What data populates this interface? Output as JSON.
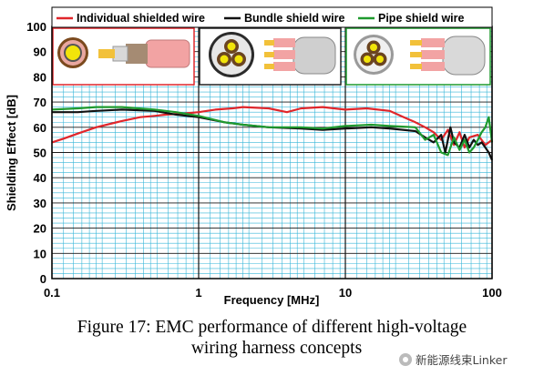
{
  "chart_data": {
    "type": "line",
    "xlabel": "Frequency [MHz]",
    "ylabel": "Shielding Effect [dB]",
    "x_scale": "log",
    "xlim": [
      0.1,
      100
    ],
    "ylim": [
      0,
      100
    ],
    "x_ticks": [
      {
        "v": 0.1,
        "label": "0.1"
      },
      {
        "v": 1,
        "label": "1"
      },
      {
        "v": 10,
        "label": "10"
      },
      {
        "v": 100,
        "label": "100"
      }
    ],
    "y_ticks": [
      0,
      10,
      20,
      30,
      40,
      50,
      60,
      70,
      80,
      90,
      100
    ],
    "grid": true,
    "legend_position": "top",
    "series": [
      {
        "name": "Individual shielded wire",
        "color": "#e0262b",
        "points": [
          [
            0.1,
            54
          ],
          [
            0.12,
            55.5
          ],
          [
            0.15,
            57.5
          ],
          [
            0.2,
            60
          ],
          [
            0.3,
            62.5
          ],
          [
            0.4,
            64
          ],
          [
            0.5,
            64.5
          ],
          [
            0.6,
            65
          ],
          [
            0.8,
            65.5
          ],
          [
            1.0,
            66
          ],
          [
            1.3,
            67
          ],
          [
            1.7,
            67.5
          ],
          [
            2,
            68
          ],
          [
            3,
            67.5
          ],
          [
            4,
            66
          ],
          [
            5,
            67.5
          ],
          [
            7,
            68
          ],
          [
            10,
            67
          ],
          [
            14,
            67.5
          ],
          [
            20,
            66.5
          ],
          [
            25,
            64
          ],
          [
            30,
            62
          ],
          [
            35,
            60
          ],
          [
            40,
            58
          ],
          [
            45,
            55
          ],
          [
            50,
            59
          ],
          [
            55,
            53
          ],
          [
            60,
            58
          ],
          [
            65,
            52
          ],
          [
            70,
            56
          ],
          [
            80,
            57
          ],
          [
            90,
            53
          ],
          [
            100,
            55
          ]
        ]
      },
      {
        "name": "Bundle shield wire",
        "color": "#111111",
        "points": [
          [
            0.1,
            66
          ],
          [
            0.15,
            66
          ],
          [
            0.2,
            66.5
          ],
          [
            0.3,
            67
          ],
          [
            0.5,
            66.5
          ],
          [
            0.7,
            65
          ],
          [
            1.0,
            64
          ],
          [
            1.5,
            62
          ],
          [
            2,
            61
          ],
          [
            3,
            60
          ],
          [
            5,
            59.5
          ],
          [
            7,
            59
          ],
          [
            10,
            59.5
          ],
          [
            15,
            60
          ],
          [
            20,
            59.5
          ],
          [
            30,
            58.5
          ],
          [
            35,
            56
          ],
          [
            40,
            54
          ],
          [
            45,
            57
          ],
          [
            48,
            50
          ],
          [
            52,
            60
          ],
          [
            55,
            54
          ],
          [
            60,
            52
          ],
          [
            65,
            57
          ],
          [
            70,
            52
          ],
          [
            75,
            55
          ],
          [
            80,
            53
          ],
          [
            85,
            54
          ],
          [
            90,
            52
          ],
          [
            95,
            50
          ],
          [
            100,
            47
          ]
        ]
      },
      {
        "name": "Pipe shield wire",
        "color": "#1f9a2e",
        "points": [
          [
            0.1,
            67
          ],
          [
            0.15,
            67.5
          ],
          [
            0.2,
            68
          ],
          [
            0.3,
            68
          ],
          [
            0.5,
            67
          ],
          [
            0.7,
            66
          ],
          [
            1.0,
            64.5
          ],
          [
            1.5,
            62
          ],
          [
            2,
            61
          ],
          [
            3,
            60
          ],
          [
            5,
            60
          ],
          [
            7,
            59.5
          ],
          [
            10,
            60.5
          ],
          [
            15,
            61
          ],
          [
            20,
            60.5
          ],
          [
            30,
            60
          ],
          [
            35,
            55
          ],
          [
            40,
            57
          ],
          [
            45,
            50
          ],
          [
            50,
            49
          ],
          [
            55,
            56
          ],
          [
            60,
            51
          ],
          [
            65,
            55
          ],
          [
            70,
            50
          ],
          [
            75,
            52
          ],
          [
            80,
            55
          ],
          [
            85,
            58
          ],
          [
            90,
            60
          ],
          [
            95,
            64
          ],
          [
            100,
            54
          ]
        ]
      }
    ]
  },
  "caption_line1": "Figure 17: EMC performance of different high-voltage",
  "caption_line2": "wiring harness concepts",
  "watermark": "新能源线束Linker"
}
